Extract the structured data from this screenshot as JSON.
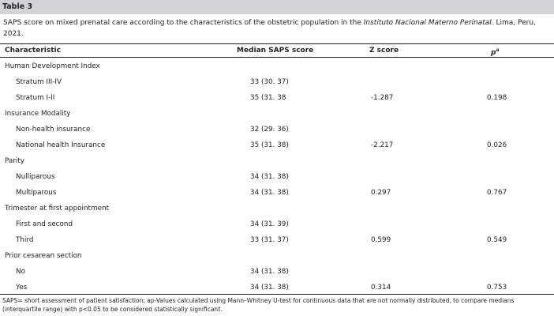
{
  "table_label": "Table 3",
  "caption": {
    "prefix": "SAPS score on mixed prenatal care according to the characteristics of the obstetric population in the ",
    "institution": "Instituto Nacional Materno Perinatal",
    "suffix": ". Lima, Peru, 2021."
  },
  "headers": {
    "characteristic": "Characteristic",
    "median": "Median SAPS score",
    "z": "Z score",
    "p": "pa"
  },
  "rows": [
    {
      "label": "Human Development Index",
      "group": true,
      "median": "",
      "z": "",
      "p": ""
    },
    {
      "label": "Stratum III-IV",
      "group": false,
      "median": "33 (30. 37)",
      "z": "",
      "p": ""
    },
    {
      "label": "Stratum I-II",
      "group": false,
      "median": "35 (31. 38",
      "z": "-1.287",
      "p": "0.198"
    },
    {
      "label": "Insurance Modality",
      "group": true,
      "median": "",
      "z": "",
      "p": ""
    },
    {
      "label": "Non-health insurance",
      "group": false,
      "median": "32 (29. 36)",
      "z": "",
      "p": ""
    },
    {
      "label": "National health Insurance",
      "group": false,
      "median": "35 (31. 38)",
      "z": "-2.217",
      "p": "0.026"
    },
    {
      "label": "Parity",
      "group": true,
      "median": "",
      "z": "",
      "p": ""
    },
    {
      "label": "Nulliparous",
      "group": false,
      "median": "34 (31. 38)",
      "z": "",
      "p": ""
    },
    {
      "label": "Multiparous",
      "group": false,
      "median": "34 (31. 38)",
      "z": "0.297",
      "p": "0.767"
    },
    {
      "label": "Trimester at first appointment",
      "group": true,
      "median": "",
      "z": "",
      "p": ""
    },
    {
      "label": "First and second",
      "group": false,
      "median": "34 (31. 39)",
      "z": "",
      "p": ""
    },
    {
      "label": "Third",
      "group": false,
      "median": "33 (31. 37)",
      "z": "0.599",
      "p": "0.549"
    },
    {
      "label": "Prior cesarean section",
      "group": true,
      "median": "",
      "z": "",
      "p": ""
    },
    {
      "label": "No",
      "group": false,
      "median": "34 (31. 38)",
      "z": "",
      "p": ""
    },
    {
      "label": "Yes",
      "group": false,
      "median": "34 (31. 38)",
      "z": "0.314",
      "p": "0.753"
    }
  ],
  "footnote": "SAPS= short assessment of patient satisfaction; ap-Values calculated using Mann–Whitney U-test for continuous data that are not normally distributed, to compare medians (interquartile range) with p<0.05 to be considered statistically significant."
}
